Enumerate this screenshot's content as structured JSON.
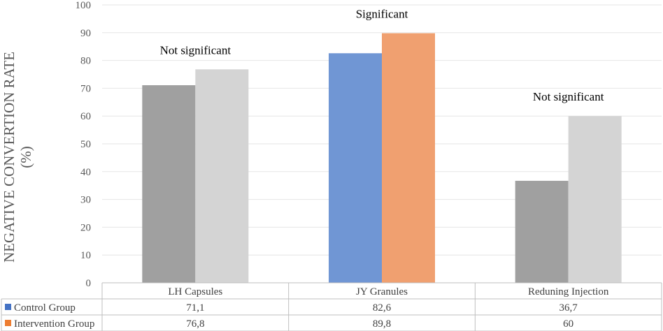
{
  "chart_data": {
    "type": "bar",
    "categories": [
      "LH Capsules",
      "JY Granules",
      "Reduning Injection"
    ],
    "series": [
      {
        "name": "Control Group",
        "values": [
          71.1,
          82.6,
          36.7
        ],
        "display": [
          "71,1",
          "82,6",
          "36,7"
        ]
      },
      {
        "name": "Intervention Group",
        "values": [
          76.8,
          89.8,
          60
        ],
        "display": [
          "76,8",
          "89,8",
          "60"
        ]
      }
    ],
    "ylabel_line1": "NEGATIVE CONVERTION RATE",
    "ylabel_line2": "(%)",
    "ylim": [
      0,
      100
    ],
    "yticks": [
      0,
      10,
      20,
      30,
      40,
      50,
      60,
      70,
      80,
      90,
      100
    ],
    "annotations": [
      "Not significant",
      "Significant",
      "Not significant"
    ],
    "highlight_category": 1,
    "grid": true,
    "legend": "data table below the chart",
    "colors": {
      "control_highlight": "#7096d4",
      "intervention_highlight": "#f0a070",
      "control_default": "#a0a0a0",
      "intervention_default": "#d4d4d4",
      "gridline": "#e6e6e6",
      "table_border": "#bfbfbf",
      "control_key": "#4472c4",
      "intervention_key": "#ed7d31"
    }
  }
}
